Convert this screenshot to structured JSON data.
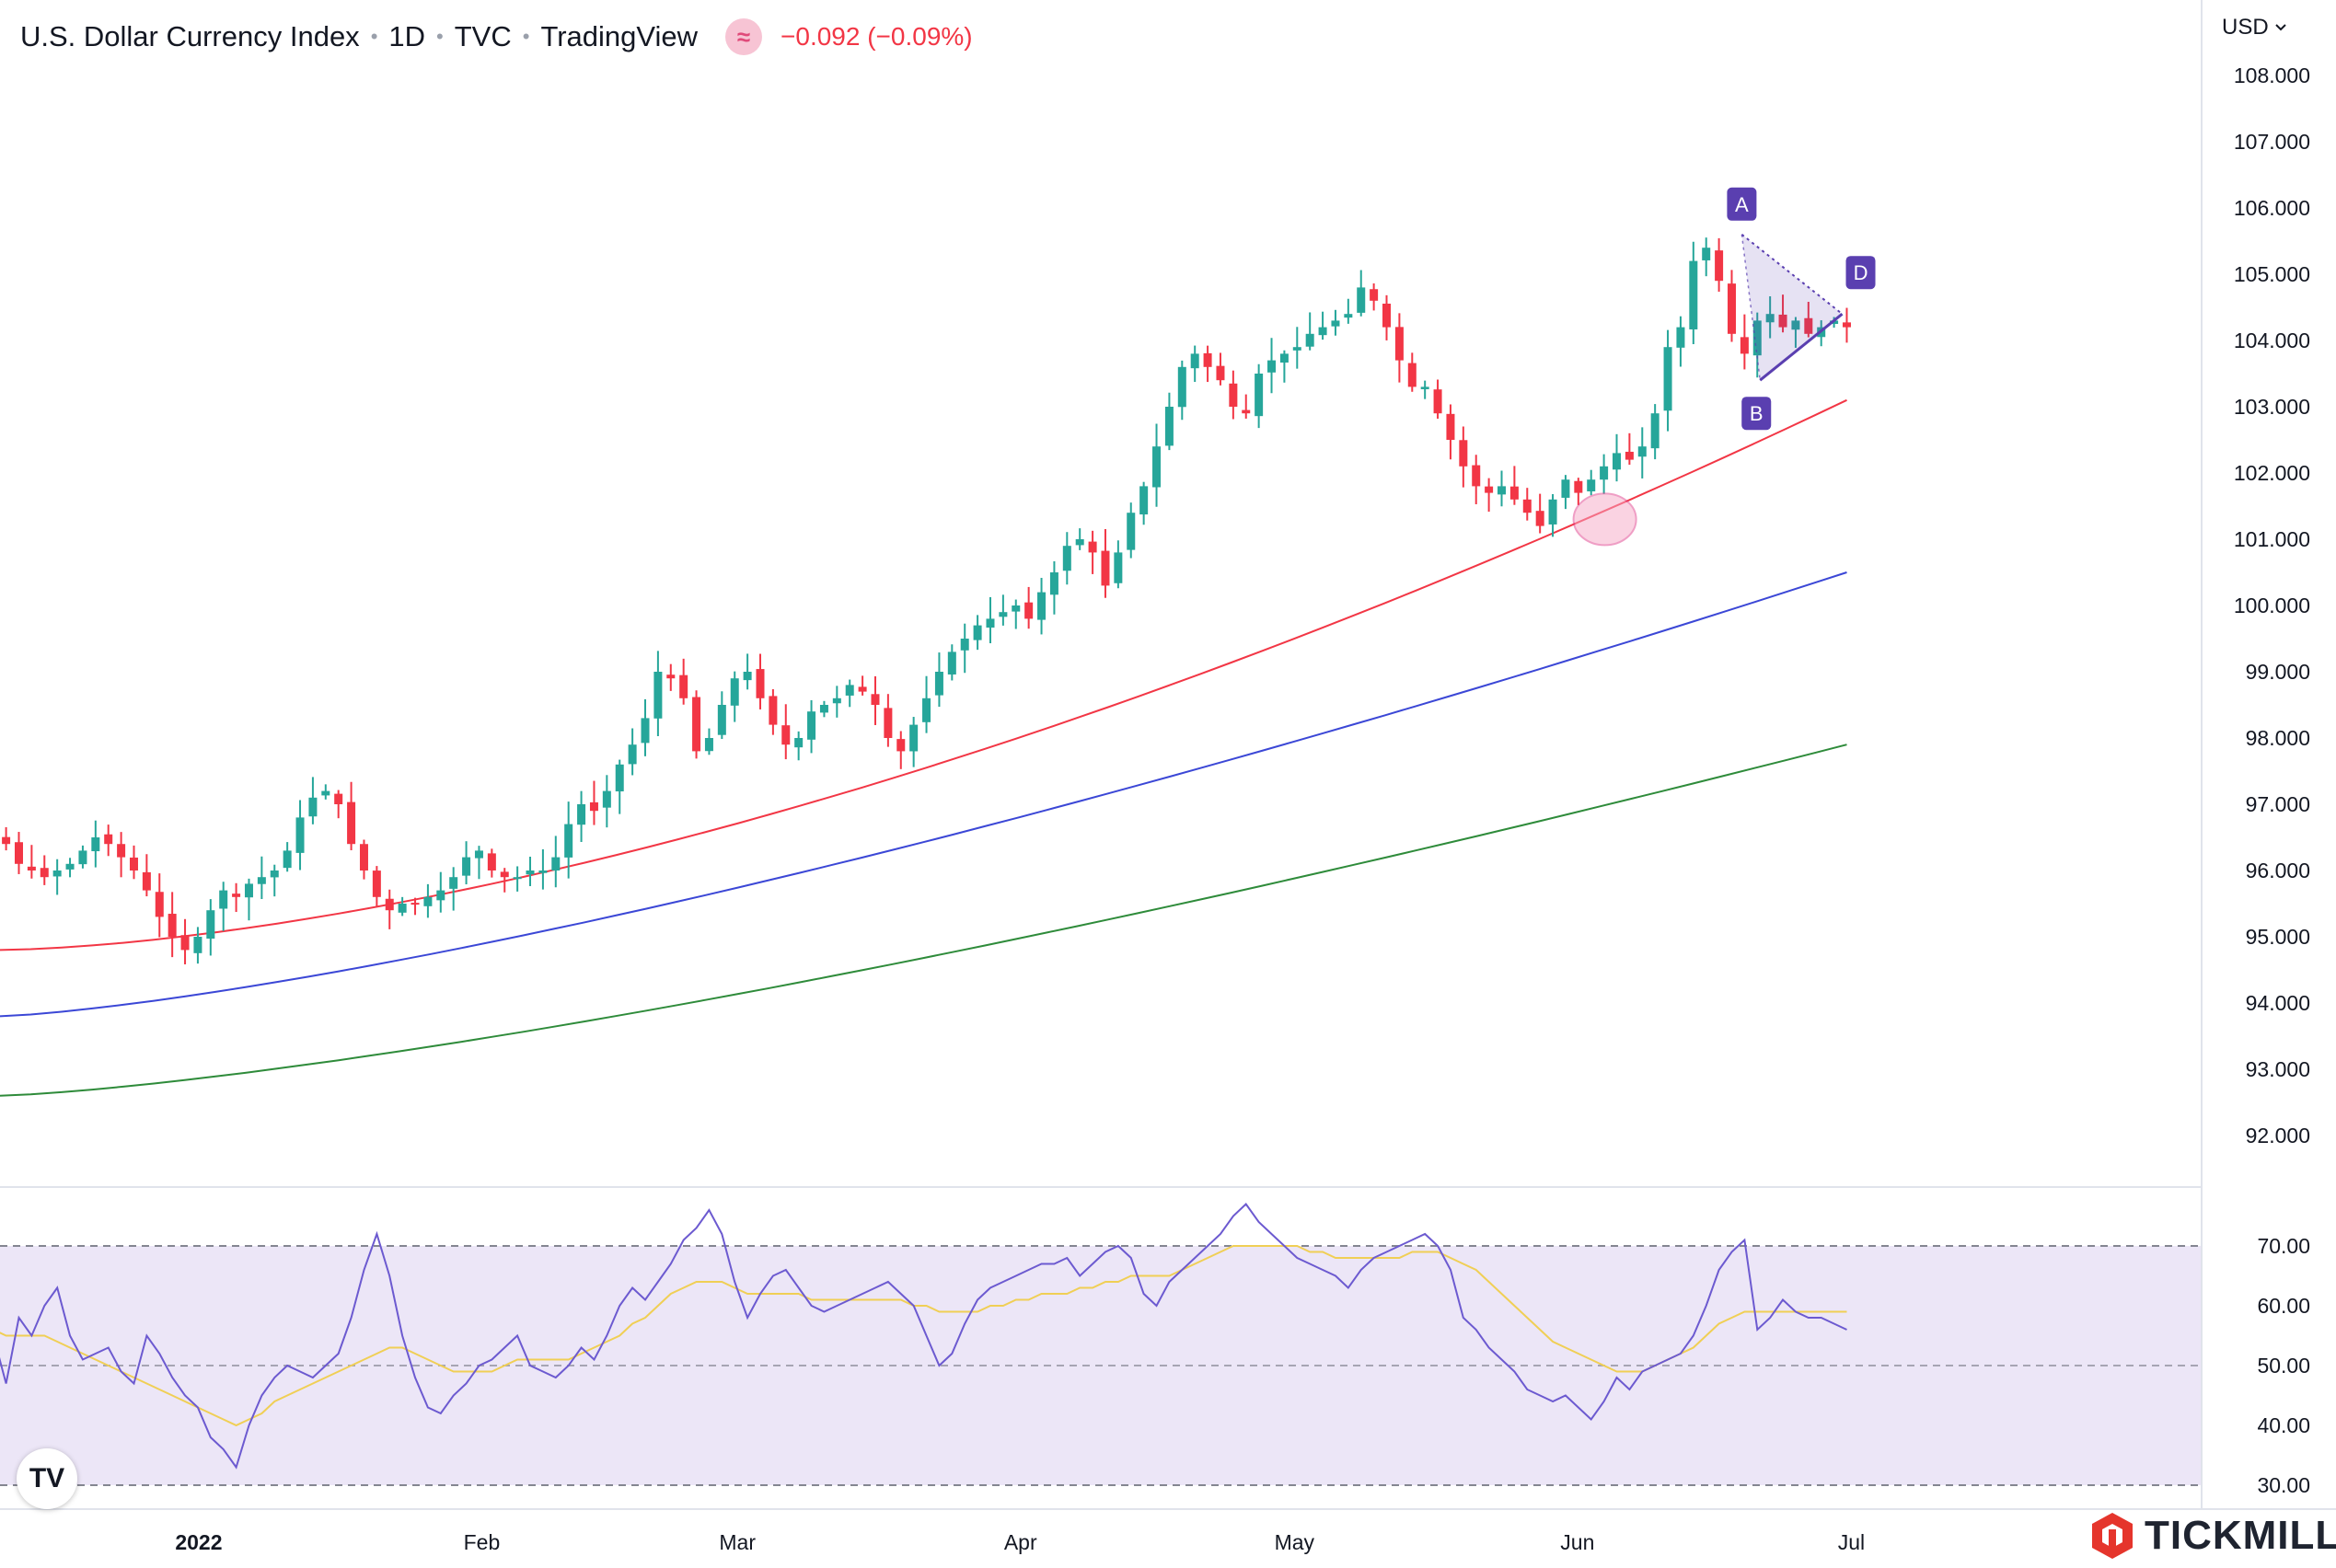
{
  "header": {
    "symbol": "U.S. Dollar Currency Index",
    "interval": "1D",
    "exchange": "TVC",
    "source": "TradingView",
    "wave_icon": "≈",
    "change": "−0.092 (−0.09%)"
  },
  "currency_selector": {
    "label": "USD",
    "icon": "chevron-down-icon"
  },
  "brand": {
    "name": "TICKMILL",
    "icon": "tickmill-logo-icon",
    "color": "#e5352c"
  },
  "tradingview_logo": {
    "text": "TV"
  },
  "colors": {
    "up": "#26a69a",
    "down": "#f23645",
    "ma50": "#f23645",
    "ma100": "#3b47d6",
    "ma200": "#2e8b3a",
    "rsi": "#6c5ad0",
    "rsi_ma": "#f0cf55",
    "rsi_band": "#ece6f7",
    "pattern": "#5a3fb0"
  },
  "chart_data": [
    {
      "type": "candlestick",
      "title": "U.S. Dollar Currency Index",
      "ylim": [
        91.0,
        109.0
      ],
      "y_ticks": [
        "108.000",
        "107.000",
        "106.000",
        "105.000",
        "104.000",
        "103.000",
        "102.000",
        "101.000",
        "100.000",
        "99.000",
        "98.000",
        "97.000",
        "96.000",
        "95.000",
        "94.000",
        "93.000",
        "92.000"
      ],
      "x_ticks": [
        {
          "label": "2022",
          "day": 26,
          "bold": true
        },
        {
          "label": "Feb",
          "day": 57,
          "bold": false
        },
        {
          "label": "Mar",
          "day": 85,
          "bold": false
        },
        {
          "label": "Apr",
          "day": 116,
          "bold": false
        },
        {
          "label": "May",
          "day": 146,
          "bold": false
        },
        {
          "label": "Jun",
          "day": 177,
          "bold": false
        },
        {
          "label": "Jul",
          "day": 207,
          "bold": false
        }
      ],
      "close_series": [
        96.3,
        96.1,
        96.0,
        96.1,
        96.2,
        96.3,
        96.4,
        96.2,
        96.0,
        96.6,
        96.7,
        96.5,
        96.4,
        96.1,
        96.0,
        95.9,
        96.0,
        96.1,
        96.3,
        96.5,
        96.4,
        96.2,
        96.0,
        95.7,
        95.3,
        95.0,
        94.8,
        95.0,
        95.4,
        95.7,
        95.6,
        95.8,
        95.9,
        96.0,
        96.3,
        96.8,
        97.1,
        97.2,
        97.0,
        96.4,
        96.0,
        95.6,
        95.4,
        95.5,
        95.5,
        95.6,
        95.7,
        95.9,
        96.2,
        96.3,
        96.0,
        95.9,
        95.9,
        96.0,
        96.0,
        96.2,
        96.7,
        97.0,
        96.9,
        97.2,
        97.6,
        97.9,
        98.3,
        99.0,
        98.9,
        98.6,
        97.8,
        98.0,
        98.5,
        98.9,
        99.0,
        98.6,
        98.2,
        97.9,
        98.0,
        98.4,
        98.5,
        98.6,
        98.8,
        98.7,
        98.5,
        98.0,
        97.8,
        98.2,
        98.6,
        99.0,
        99.3,
        99.5,
        99.7,
        99.8,
        99.9,
        100.0,
        99.8,
        100.2,
        100.5,
        100.9,
        101.0,
        100.8,
        100.3,
        100.8,
        101.4,
        101.8,
        102.4,
        103.0,
        103.6,
        103.8,
        103.6,
        103.4,
        103.0,
        102.9,
        103.5,
        103.7,
        103.8,
        103.9,
        104.1,
        104.2,
        104.3,
        104.4,
        104.8,
        104.6,
        104.2,
        103.7,
        103.3,
        103.3,
        102.9,
        102.5,
        102.1,
        101.8,
        101.7,
        101.8,
        101.6,
        101.4,
        101.2,
        101.6,
        101.9,
        101.7,
        101.9,
        102.1,
        102.3,
        102.2,
        102.4,
        102.9,
        103.9,
        104.2,
        105.2,
        105.4,
        104.9,
        104.1,
        103.8,
        104.3,
        104.4,
        104.2,
        104.3,
        104.1,
        104.2,
        104.3,
        104.2
      ],
      "ma_series": [
        {
          "name": "MA50",
          "start": 94.8,
          "end": 103.1,
          "color": "#f23645"
        },
        {
          "name": "MA100",
          "start": 93.8,
          "end": 100.5,
          "color": "#3b47d6"
        },
        {
          "name": "MA200",
          "start": 92.6,
          "end": 97.9,
          "color": "#2e8b3a"
        }
      ],
      "pattern": {
        "A": {
          "label": "A",
          "day": 195,
          "price": 105.6
        },
        "B": {
          "label": "B",
          "day": 197,
          "price": 103.4
        },
        "D": {
          "label": "D",
          "day": 206,
          "price": 104.4
        }
      },
      "highlight": {
        "day": 180,
        "price": 101.3
      }
    },
    {
      "type": "line",
      "title": "RSI",
      "ylim": [
        27,
        79
      ],
      "y_ticks": [
        "70.00",
        "60.00",
        "50.00",
        "40.00",
        "30.00"
      ],
      "band": [
        30,
        70
      ],
      "mid": 50,
      "rsi": [
        62,
        57,
        52,
        60,
        56,
        60,
        62,
        55,
        47,
        58,
        55,
        60,
        63,
        55,
        51,
        52,
        53,
        49,
        47,
        55,
        52,
        48,
        45,
        43,
        38,
        36,
        33,
        40,
        45,
        48,
        50,
        49,
        48,
        50,
        52,
        58,
        66,
        72,
        65,
        55,
        48,
        43,
        42,
        45,
        47,
        50,
        51,
        53,
        55,
        50,
        49,
        48,
        50,
        53,
        51,
        55,
        60,
        63,
        61,
        64,
        67,
        71,
        73,
        76,
        72,
        64,
        58,
        62,
        65,
        66,
        63,
        60,
        59,
        60,
        61,
        62,
        63,
        64,
        62,
        60,
        55,
        50,
        52,
        57,
        61,
        63,
        64,
        65,
        66,
        67,
        67,
        68,
        65,
        67,
        69,
        70,
        68,
        62,
        60,
        64,
        66,
        68,
        70,
        72,
        75,
        77,
        74,
        72,
        70,
        68,
        67,
        66,
        65,
        63,
        66,
        68,
        69,
        70,
        71,
        72,
        70,
        66,
        58,
        56,
        53,
        51,
        49,
        46,
        45,
        44,
        45,
        43,
        41,
        44,
        48,
        46,
        49,
        50,
        51,
        52,
        55,
        60,
        66,
        69,
        71,
        56,
        58,
        61,
        59,
        58,
        58,
        57,
        56
      ],
      "rsi_ma": [
        60,
        59,
        58,
        57,
        57,
        57,
        57,
        56,
        55,
        55,
        55,
        55,
        54,
        53,
        52,
        51,
        50,
        49,
        48,
        47,
        46,
        45,
        44,
        43,
        42,
        41,
        40,
        41,
        42,
        44,
        45,
        46,
        47,
        48,
        49,
        50,
        51,
        52,
        53,
        53,
        52,
        51,
        50,
        49,
        49,
        49,
        49,
        50,
        51,
        51,
        51,
        51,
        51,
        52,
        53,
        54,
        55,
        57,
        58,
        60,
        62,
        63,
        64,
        64,
        64,
        63,
        62,
        62,
        62,
        62,
        62,
        61,
        61,
        61,
        61,
        61,
        61,
        61,
        61,
        60,
        60,
        59,
        59,
        59,
        59,
        60,
        60,
        61,
        61,
        62,
        62,
        62,
        63,
        63,
        64,
        64,
        65,
        65,
        65,
        65,
        66,
        67,
        68,
        69,
        70,
        70,
        70,
        70,
        70,
        70,
        69,
        69,
        68,
        68,
        68,
        68,
        68,
        68,
        69,
        69,
        69,
        68,
        67,
        66,
        64,
        62,
        60,
        58,
        56,
        54,
        53,
        52,
        51,
        50,
        49,
        49,
        49,
        50,
        51,
        52,
        53,
        55,
        57,
        58,
        59,
        59,
        59,
        59,
        59,
        59,
        59,
        59,
        59
      ]
    }
  ]
}
